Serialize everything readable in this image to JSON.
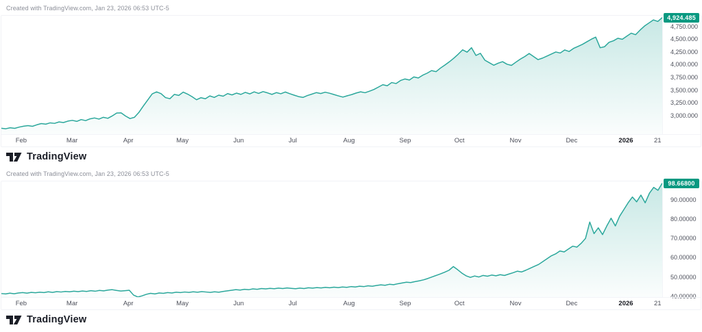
{
  "colors": {
    "line": "#2aa79b",
    "area_top": "rgba(42,167,155,0.26)",
    "area_bottom": "rgba(42,167,155,0.02)",
    "badge_bg": "#089981",
    "badge_text": "#ffffff",
    "axis_text": "#4c4f5a",
    "attribution_text": "#8b8e98"
  },
  "charts": [
    {
      "attribution": "Created with TradingView.com, Jan 23, 2026 06:53 UTC-5",
      "logo_text": "TradingView"
    },
    {
      "attribution": "Created with TradingView.com, Jan 23, 2026 06:53 UTC-5",
      "logo_text": "TradingView"
    }
  ],
  "chart_data": [
    {
      "type": "area",
      "title": "",
      "xlabel": "",
      "ylabel": "",
      "legend": "none",
      "grid": false,
      "x_range": "Jan 21 2025 - Jan 21 2026",
      "ylim": [
        2620,
        4960
      ],
      "last_value": 4924.485,
      "last_label": "4,924.485",
      "y_ticks": [
        {
          "value": 4750,
          "label": "4,750.000"
        },
        {
          "value": 4500,
          "label": "4,500.000"
        },
        {
          "value": 4250,
          "label": "4,250.000"
        },
        {
          "value": 4000,
          "label": "4,000.000"
        },
        {
          "value": 3750,
          "label": "3,750.000"
        },
        {
          "value": 3500,
          "label": "3,500.000"
        },
        {
          "value": 3250,
          "label": "3,250.000"
        },
        {
          "value": 3000,
          "label": "3,000.000"
        }
      ],
      "x_ticks": [
        {
          "label": "Feb",
          "pos": 0.03
        },
        {
          "label": "Mar",
          "pos": 0.107
        },
        {
          "label": "Apr",
          "pos": 0.192
        },
        {
          "label": "May",
          "pos": 0.274
        },
        {
          "label": "Jun",
          "pos": 0.359
        },
        {
          "label": "Jul",
          "pos": 0.441
        },
        {
          "label": "Aug",
          "pos": 0.526
        },
        {
          "label": "Sep",
          "pos": 0.611
        },
        {
          "label": "Oct",
          "pos": 0.693
        },
        {
          "label": "Nov",
          "pos": 0.778
        },
        {
          "label": "Dec",
          "pos": 0.863
        },
        {
          "label": "2026",
          "pos": 0.945,
          "bold": true
        },
        {
          "label": "21",
          "pos": 0.993
        }
      ],
      "values": [
        2750,
        2740,
        2760,
        2748,
        2772,
        2790,
        2802,
        2788,
        2818,
        2842,
        2830,
        2856,
        2846,
        2874,
        2862,
        2890,
        2905,
        2885,
        2920,
        2900,
        2935,
        2952,
        2930,
        2965,
        2945,
        2992,
        3048,
        3052,
        2990,
        2940,
        2965,
        3060,
        3185,
        3305,
        3425,
        3465,
        3430,
        3352,
        3330,
        3415,
        3395,
        3460,
        3420,
        3370,
        3310,
        3350,
        3330,
        3385,
        3355,
        3400,
        3380,
        3430,
        3405,
        3440,
        3415,
        3455,
        3425,
        3465,
        3435,
        3470,
        3445,
        3415,
        3450,
        3428,
        3462,
        3430,
        3400,
        3372,
        3356,
        3392,
        3420,
        3450,
        3432,
        3458,
        3438,
        3412,
        3386,
        3362,
        3388,
        3412,
        3442,
        3466,
        3448,
        3478,
        3512,
        3558,
        3605,
        3585,
        3648,
        3628,
        3688,
        3718,
        3698,
        3758,
        3738,
        3792,
        3832,
        3882,
        3862,
        3932,
        3992,
        4055,
        4125,
        4205,
        4290,
        4245,
        4332,
        4180,
        4222,
        4088,
        4038,
        3988,
        4028,
        4058,
        4008,
        3985,
        4048,
        4108,
        4158,
        4218,
        4158,
        4098,
        4128,
        4168,
        4208,
        4248,
        4228,
        4288,
        4258,
        4318,
        4358,
        4398,
        4448,
        4498,
        4540,
        4332,
        4352,
        4438,
        4468,
        4518,
        4498,
        4558,
        4618,
        4588,
        4678,
        4758,
        4818,
        4878,
        4848,
        4924.485
      ]
    },
    {
      "type": "area",
      "title": "",
      "xlabel": "",
      "ylabel": "",
      "legend": "none",
      "grid": false,
      "x_range": "Jan 21 2025 - Jan 21 2026",
      "ylim": [
        39.2,
        99.6
      ],
      "last_value": 98.668,
      "last_label": "98.66800",
      "y_ticks": [
        {
          "value": 90,
          "label": "90.00000"
        },
        {
          "value": 80,
          "label": "80.00000"
        },
        {
          "value": 70,
          "label": "70.00000"
        },
        {
          "value": 60,
          "label": "60.00000"
        },
        {
          "value": 50,
          "label": "50.00000"
        },
        {
          "value": 40,
          "label": "40.00000"
        }
      ],
      "x_ticks": [
        {
          "label": "Feb",
          "pos": 0.03
        },
        {
          "label": "Mar",
          "pos": 0.107
        },
        {
          "label": "Apr",
          "pos": 0.192
        },
        {
          "label": "May",
          "pos": 0.274
        },
        {
          "label": "Jun",
          "pos": 0.359
        },
        {
          "label": "Jul",
          "pos": 0.441
        },
        {
          "label": "Aug",
          "pos": 0.526
        },
        {
          "label": "Sep",
          "pos": 0.611
        },
        {
          "label": "Oct",
          "pos": 0.693
        },
        {
          "label": "Nov",
          "pos": 0.778
        },
        {
          "label": "Dec",
          "pos": 0.863
        },
        {
          "label": "2026",
          "pos": 0.945,
          "bold": true
        },
        {
          "label": "21",
          "pos": 0.993
        }
      ],
      "values": [
        41.4,
        41.2,
        41.6,
        41.3,
        41.7,
        41.9,
        41.6,
        42.0,
        41.8,
        42.1,
        41.9,
        42.3,
        42.0,
        42.4,
        42.2,
        42.5,
        42.3,
        42.6,
        42.4,
        42.7,
        42.5,
        42.9,
        42.6,
        43.0,
        42.8,
        43.2,
        43.4,
        43.0,
        42.7,
        42.9,
        43.1,
        40.6,
        39.6,
        40.2,
        41.0,
        41.5,
        41.2,
        41.7,
        41.5,
        41.9,
        41.7,
        42.1,
        41.9,
        42.2,
        42.0,
        42.3,
        42.1,
        42.4,
        42.2,
        42.0,
        42.3,
        42.1,
        42.5,
        42.8,
        43.1,
        43.4,
        43.2,
        43.6,
        43.4,
        43.8,
        43.6,
        44.0,
        43.8,
        44.1,
        43.9,
        44.2,
        44.0,
        44.3,
        44.1,
        43.9,
        44.2,
        44.0,
        44.4,
        44.2,
        44.5,
        44.3,
        44.6,
        44.4,
        44.7,
        44.5,
        44.8,
        44.6,
        45.0,
        44.8,
        45.2,
        45.0,
        45.4,
        45.2,
        45.6,
        45.9,
        45.7,
        46.2,
        46.0,
        46.5,
        46.9,
        47.3,
        47.1,
        47.6,
        48.0,
        48.5,
        49.2,
        50.0,
        50.8,
        51.6,
        52.5,
        53.5,
        55.4,
        53.8,
        52.0,
        50.6,
        49.8,
        50.5,
        50.0,
        50.8,
        50.4,
        51.0,
        50.6,
        51.2,
        50.8,
        51.5,
        52.2,
        53.0,
        52.6,
        53.5,
        54.5,
        55.5,
        56.5,
        58.0,
        59.5,
        61.0,
        62.0,
        63.5,
        63.0,
        64.5,
        66.0,
        65.5,
        67.5,
        70.0,
        78.5,
        72.5,
        75.5,
        72.0,
        76.5,
        80.5,
        76.5,
        81.5,
        85.0,
        88.5,
        91.5,
        89.0,
        92.5,
        88.5,
        93.5,
        96.5,
        95.0,
        98.668
      ]
    }
  ]
}
